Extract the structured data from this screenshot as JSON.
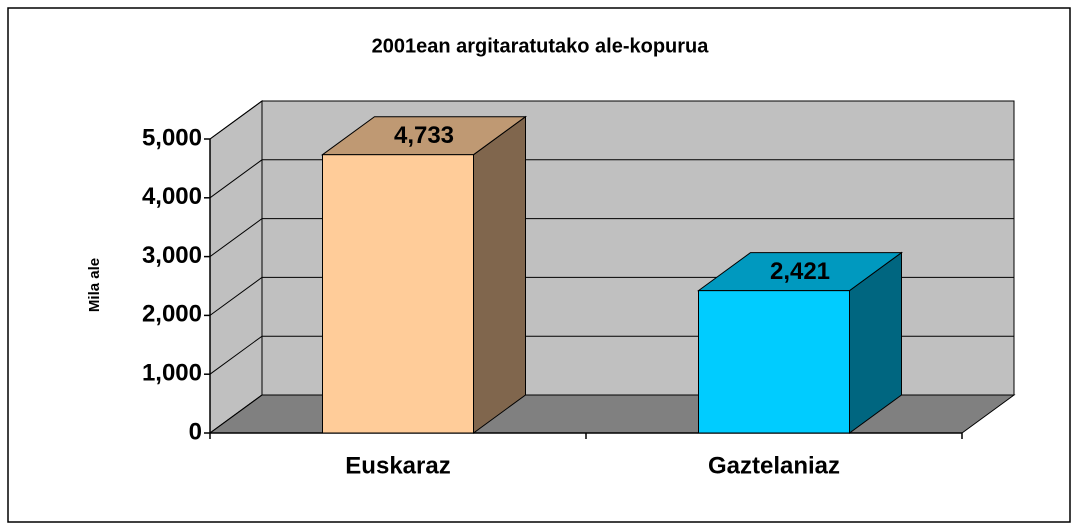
{
  "chart_data": {
    "type": "bar3d",
    "title": "2001ean argitaratutako ale-kopurua",
    "y_label": "Mila ale",
    "categories": [
      "Euskaraz",
      "Gaztelaniaz"
    ],
    "values": [
      4733,
      2421
    ],
    "value_labels": [
      "4,733",
      "2,421"
    ],
    "colors": [
      "#FFCC99",
      "#00CCFF"
    ],
    "ylim": [
      0,
      5000
    ],
    "yticks": [
      0,
      {
        "value": 1000,
        "label": "1,000"
      },
      {
        "value": 2000,
        "label": "2,000"
      },
      {
        "value": 3000,
        "label": "3,000"
      },
      {
        "value": 4000,
        "label": "4,000"
      },
      {
        "value": 5000,
        "label": "5,000"
      }
    ],
    "grid": true
  }
}
